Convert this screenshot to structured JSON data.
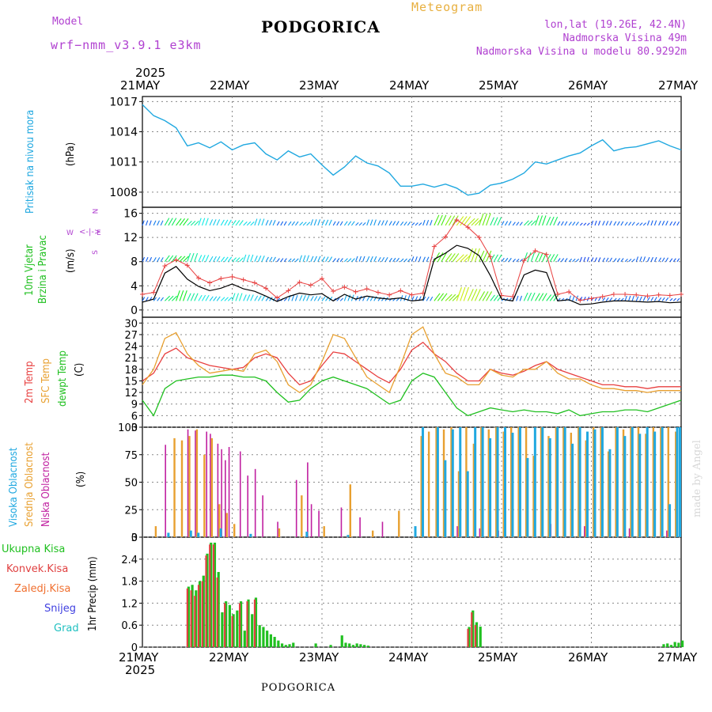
{
  "header": {
    "model_label": "Model",
    "model_name": "wrf−nmm_v3.9.1  e3km",
    "station": "PODGORICA",
    "product": "Meteogram",
    "lonlat": "lon,lat (19.26E, 42.4N)",
    "elevation": "Nadmorska Visina 49m",
    "model_elevation": "Nadmorska Visina u modelu 80.9292m"
  },
  "footer": {
    "station": "PODGORICA",
    "watermark": "made by Angel"
  },
  "colors": {
    "pressure": "#20a8e0",
    "temp2m": "#e84040",
    "sfc": "#e8a030",
    "dewpt": "#20c020",
    "precip_total": "#20c020",
    "precip_conv": "#e04040",
    "high_cloud": "#20a8e0",
    "mid_cloud": "#e8a030",
    "low_cloud": "#c020a0"
  },
  "chart_data": [
    {
      "id": "pressure",
      "type": "line",
      "title": "Pritisak na nivou mora",
      "ylabel": "(hPa)",
      "ylim": [
        1006.5,
        1017.5
      ],
      "yticks": [
        "1017",
        "1014",
        "1011",
        "1008"
      ],
      "x": [
        0,
        3,
        6,
        9,
        12,
        15,
        18,
        21,
        24,
        27,
        30,
        33,
        36,
        39,
        42,
        45,
        48,
        51,
        54,
        57,
        60,
        63,
        66,
        69,
        72,
        75,
        78,
        81,
        84,
        87,
        90,
        93,
        96,
        99,
        102,
        105,
        108,
        111,
        114,
        117,
        120,
        123,
        126,
        129,
        132,
        135,
        138,
        141,
        144
      ],
      "values": [
        1016.7,
        1015.6,
        1015.1,
        1014.4,
        1012.6,
        1012.9,
        1012.4,
        1013.0,
        1012.2,
        1012.7,
        1012.9,
        1011.8,
        1011.2,
        1012.1,
        1011.5,
        1011.8,
        1010.7,
        1009.7,
        1010.5,
        1011.6,
        1010.9,
        1010.6,
        1009.9,
        1008.6,
        1008.6,
        1008.8,
        1008.5,
        1008.8,
        1008.4,
        1007.7,
        1007.9,
        1008.7,
        1008.9,
        1009.3,
        1009.9,
        1011.0,
        1010.8,
        1011.2,
        1011.6,
        1011.9,
        1012.6,
        1013.2,
        1012.1,
        1012.4,
        1012.5,
        1012.8,
        1013.1,
        1012.6,
        1012.2
      ]
    },
    {
      "id": "wind",
      "type": "line",
      "title": "10m Vjetar",
      "subtitle": "Brzina i Pravac",
      "ylabel": "(m/s)",
      "ylim": [
        -1.2,
        17
      ],
      "yticks": [
        "16",
        "12",
        "8",
        "4",
        "0"
      ],
      "compass": [
        "N",
        "W",
        "E",
        "S"
      ],
      "x": [
        0,
        3,
        6,
        9,
        12,
        15,
        18,
        21,
        24,
        27,
        30,
        33,
        36,
        39,
        42,
        45,
        48,
        51,
        54,
        57,
        60,
        63,
        66,
        69,
        72,
        75,
        78,
        81,
        84,
        87,
        90,
        93,
        96,
        99,
        102,
        105,
        108,
        111,
        114,
        117,
        120,
        123,
        126,
        129,
        132,
        135,
        138,
        141,
        144
      ],
      "series": [
        {
          "name": "speed",
          "values": [
            1.3,
            1.8,
            6.1,
            7.2,
            5.1,
            3.9,
            3.2,
            3.6,
            4.3,
            3.5,
            3.1,
            2.3,
            1.4,
            2.2,
            2.8,
            2.5,
            2.7,
            1.5,
            2.6,
            1.8,
            2.3,
            2.0,
            1.8,
            2.0,
            1.5,
            1.7,
            8.4,
            9.4,
            10.7,
            10.2,
            9.0,
            5.7,
            1.8,
            1.5,
            5.8,
            6.6,
            6.2,
            1.5,
            1.7,
            0.9,
            1.0,
            1.3,
            1.5,
            1.5,
            1.4,
            1.3,
            1.4,
            1.2,
            1.3
          ]
        },
        {
          "name": "gust",
          "values": [
            2.6,
            2.9,
            7.3,
            8.3,
            7.4,
            5.3,
            4.5,
            5.2,
            5.5,
            5.0,
            4.5,
            3.6,
            2.0,
            3.2,
            4.6,
            4.1,
            5.2,
            3.1,
            3.8,
            3.0,
            3.5,
            2.9,
            2.5,
            3.2,
            2.5,
            2.8,
            10.5,
            12.1,
            14.9,
            13.7,
            12.0,
            8.8,
            2.4,
            2.2,
            8.2,
            9.8,
            9.2,
            2.6,
            3.0,
            1.6,
            1.9,
            2.2,
            2.6,
            2.6,
            2.5,
            2.3,
            2.5,
            2.4,
            2.6
          ]
        }
      ]
    },
    {
      "id": "temperature",
      "type": "line",
      "titles": [
        "2m Temp",
        "SFC Temp",
        "dewpt Temp"
      ],
      "ylabel": "(C)",
      "ylim": [
        3,
        31.5
      ],
      "yticks": [
        "30",
        "27",
        "24",
        "21",
        "18",
        "15",
        "12",
        "9",
        "6",
        "3"
      ],
      "x": [
        0,
        3,
        6,
        9,
        12,
        15,
        18,
        21,
        24,
        27,
        30,
        33,
        36,
        39,
        42,
        45,
        48,
        51,
        54,
        57,
        60,
        63,
        66,
        69,
        72,
        75,
        78,
        81,
        84,
        87,
        90,
        93,
        96,
        99,
        102,
        105,
        108,
        111,
        114,
        117,
        120,
        123,
        126,
        129,
        132,
        135,
        138,
        141,
        144
      ],
      "series": [
        {
          "name": "2m Temp",
          "values": [
            15,
            17,
            22,
            23.5,
            21,
            20,
            19,
            18.5,
            18,
            18.5,
            21,
            22,
            21,
            17,
            14,
            15,
            19,
            22.5,
            22,
            20,
            18,
            16,
            14.5,
            18,
            23,
            25,
            22,
            20,
            17,
            15,
            15,
            18,
            17,
            16.5,
            17.5,
            19,
            20,
            18,
            17,
            16,
            15,
            14,
            14,
            13.5,
            13.5,
            13,
            13.5,
            13.5,
            13.5
          ]
        },
        {
          "name": "SFC Temp",
          "values": [
            14,
            18,
            26,
            27.5,
            22,
            19,
            17,
            17.5,
            18,
            17.5,
            22,
            23,
            20,
            14,
            12,
            14,
            20,
            27,
            26,
            21,
            16,
            14,
            12,
            19,
            27,
            29,
            22,
            17,
            16,
            14,
            14,
            18,
            16.5,
            16,
            18,
            18,
            20,
            17,
            15.5,
            15.5,
            14,
            13,
            13,
            12.5,
            12.5,
            12,
            12.5,
            12.5,
            12.5
          ]
        },
        {
          "name": "dewpt Temp",
          "values": [
            10,
            6,
            13,
            15,
            15.5,
            16,
            16,
            16.5,
            16.5,
            16,
            16,
            15,
            12,
            9.5,
            10,
            13,
            15,
            16,
            15,
            14,
            13,
            11,
            9,
            10,
            15,
            17,
            16,
            12,
            8,
            6,
            7,
            8,
            7.5,
            7,
            7.5,
            7,
            7,
            6.5,
            7.5,
            6,
            6.5,
            7,
            7,
            7.5,
            7.5,
            7,
            8,
            9,
            10
          ]
        }
      ]
    },
    {
      "id": "cloud",
      "type": "bar",
      "titles": [
        "Visoka Oblacnost",
        "Srednja Oblacnost",
        "Niska Oblacnost"
      ],
      "ylabel": "(%)",
      "ylim": [
        0,
        100
      ],
      "yticks": [
        "100",
        "75",
        "50",
        "25",
        "0"
      ],
      "series": [
        {
          "name": "Niska Oblacnost",
          "x": [
            6,
            12,
            14,
            17,
            18,
            20,
            21,
            22,
            23,
            26,
            28,
            30,
            32,
            36,
            41,
            44,
            45,
            47,
            53,
            58,
            64,
            84,
            90,
            95,
            109,
            118,
            130,
            140
          ],
          "values": [
            84,
            98,
            97,
            96,
            94,
            85,
            80,
            70,
            82,
            78,
            56,
            62,
            38,
            14,
            52,
            68,
            30,
            24,
            27,
            18,
            14,
            10,
            8,
            6,
            12,
            10,
            8,
            6
          ]
        },
        {
          "name": "Srednja Oblacnost",
          "x": [
            3,
            8,
            10,
            12,
            14,
            16,
            18,
            20,
            22,
            24,
            36,
            42,
            48,
            55,
            61,
            68,
            74,
            76,
            78,
            80,
            82,
            84,
            86,
            88,
            90,
            92,
            94,
            96,
            98,
            100,
            102,
            104,
            106,
            108,
            110,
            112,
            114,
            116,
            118,
            120,
            122,
            124,
            126,
            128,
            130,
            132,
            134,
            136,
            138,
            140,
            142,
            144
          ],
          "values": [
            10,
            90,
            88,
            92,
            98,
            75,
            90,
            30,
            22,
            12,
            8,
            38,
            10,
            48,
            6,
            24,
            92,
            96,
            100,
            98,
            100,
            60,
            100,
            85,
            100,
            98,
            100,
            96,
            100,
            100,
            100,
            74,
            100,
            92,
            100,
            100,
            95,
            100,
            88,
            100,
            100,
            78,
            100,
            98,
            100,
            100,
            94,
            100,
            100,
            100,
            96,
            100
          ]
        },
        {
          "name": "Visoka Oblacnost",
          "x": [
            6,
            12,
            14,
            20,
            28,
            43,
            54,
            72,
            74,
            78,
            80,
            82,
            84,
            86,
            88,
            90,
            92,
            94,
            96,
            98,
            100,
            102,
            104,
            106,
            108,
            110,
            112,
            114,
            116,
            118,
            120,
            122,
            124,
            126,
            128,
            130,
            132,
            134,
            136,
            138,
            140,
            142,
            144
          ],
          "values": [
            4,
            6,
            4,
            8,
            3,
            5,
            2,
            10,
            100,
            100,
            70,
            98,
            100,
            60,
            100,
            100,
            90,
            100,
            100,
            95,
            100,
            72,
            100,
            100,
            90,
            100,
            100,
            85,
            100,
            96,
            98,
            100,
            80,
            100,
            92,
            100,
            94,
            100,
            96,
            100,
            30,
            100,
            100
          ]
        }
      ]
    },
    {
      "id": "precip",
      "type": "bar",
      "titles": [
        "Ukupna Kisa",
        "Konvek.Kisa",
        "Zaledj.Kisa",
        "Snijeg",
        "Grad"
      ],
      "ylabel": "1hr Precip (mm)",
      "ylim": [
        0,
        3
      ],
      "yticks": [
        "3",
        "2.4",
        "1.8",
        "1.2",
        "0.6",
        "0"
      ],
      "series": [
        {
          "name": "Ukupna Kisa",
          "x": [
            12,
            13,
            14,
            15,
            16,
            17,
            18,
            19,
            20,
            21,
            22,
            23,
            24,
            25,
            26,
            27,
            28,
            29,
            30,
            31,
            32,
            33,
            34,
            35,
            36,
            37,
            38,
            39,
            40,
            46,
            50,
            53,
            54,
            55,
            56,
            57,
            58,
            59,
            60,
            87,
            88,
            89,
            90,
            139,
            140,
            141,
            142,
            143,
            144
          ],
          "values": [
            1.65,
            1.7,
            1.55,
            1.8,
            1.95,
            2.55,
            2.85,
            2.85,
            2.05,
            0.95,
            1.25,
            1.15,
            0.9,
            1.0,
            1.25,
            0.45,
            1.3,
            0.9,
            1.35,
            0.6,
            0.55,
            0.45,
            0.35,
            0.28,
            0.18,
            0.1,
            0.06,
            0.08,
            0.12,
            0.1,
            0.06,
            0.32,
            0.12,
            0.1,
            0.06,
            0.1,
            0.08,
            0.06,
            0.04,
            0.55,
            1.0,
            0.68,
            0.56,
            0.08,
            0.1,
            0.06,
            0.14,
            0.12,
            0.18
          ]
        },
        {
          "name": "Konvek.Kisa",
          "x": [
            12,
            13,
            14,
            15,
            16,
            17,
            18,
            19,
            20,
            22,
            24,
            26,
            28,
            30,
            87,
            88,
            89
          ],
          "values": [
            1.6,
            1.55,
            1.4,
            1.7,
            1.8,
            2.5,
            2.8,
            2.8,
            1.9,
            1.2,
            0.85,
            1.2,
            1.25,
            1.3,
            0.5,
            0.95,
            0.6
          ]
        }
      ]
    }
  ],
  "time_axis": {
    "hours_per_day": 24,
    "labels": [
      "21MAY",
      "22MAY",
      "23MAY",
      "24MAY",
      "25MAY",
      "26MAY",
      "27MAY"
    ],
    "year": "2025"
  }
}
